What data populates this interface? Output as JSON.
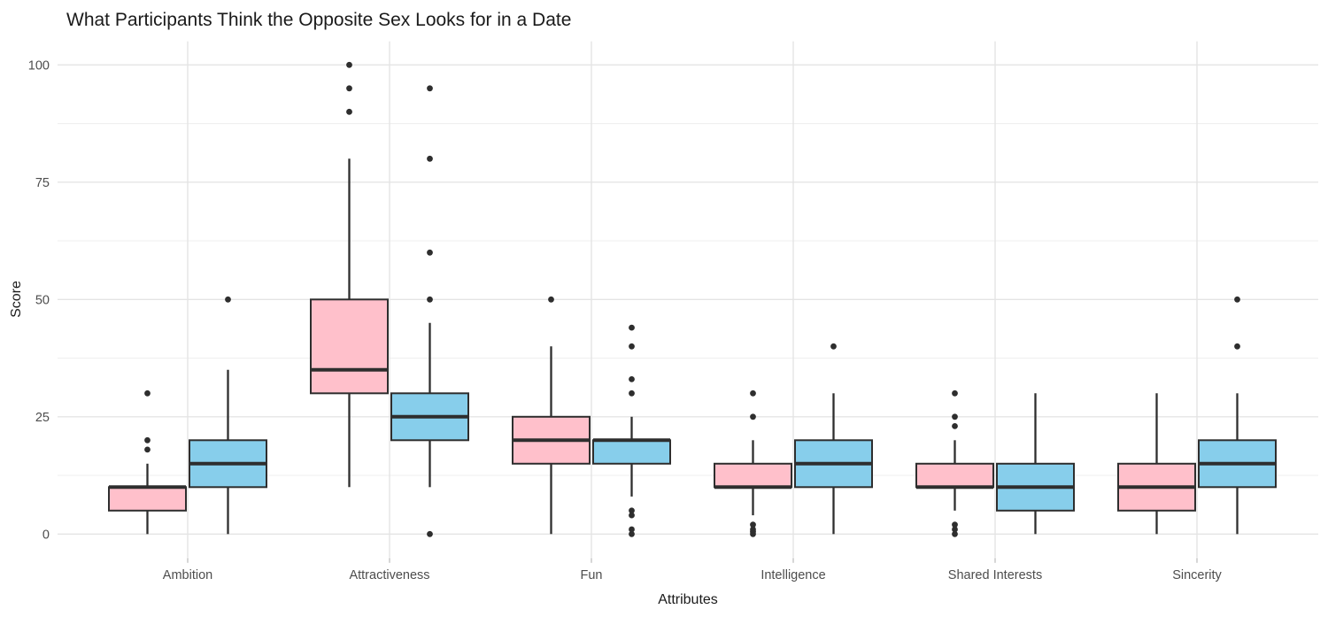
{
  "chart_data": {
    "type": "boxplot",
    "title": "What Participants Think the Opposite Sex Looks for in a Date",
    "xlabel": "Attributes",
    "ylabel": "Score",
    "categories": [
      "Ambition",
      "Attractiveness",
      "Fun",
      "Intelligence",
      "Shared Interests",
      "Sincerity"
    ],
    "ylim": [
      0,
      100
    ],
    "yticks": [
      0,
      25,
      50,
      75,
      100
    ],
    "ytick_labels": [
      "0",
      "25",
      "50",
      "75",
      "100"
    ],
    "yminor": [
      12.5,
      37.5,
      62.5,
      87.5
    ],
    "grid": "horizontal-major-minor, vertical-major",
    "legend": "none",
    "colors": {
      "pink_fill": "#FFC0CB",
      "blue_fill": "#87CEEB",
      "line": "#2E2E2E",
      "grid_major": "#E4E4E4",
      "grid_minor": "#F0F0F0",
      "tick": "#D6D6D6",
      "tick_text": "#4D4D4D"
    },
    "series": [
      {
        "name": "pink",
        "color": "#FFC0CB",
        "boxes": [
          {
            "category": "Ambition",
            "whisker_low": 0,
            "q1": 5,
            "median": 10,
            "q3": 10,
            "whisker_high": 15,
            "outliers": [
              18,
              20,
              30
            ]
          },
          {
            "category": "Attractiveness",
            "whisker_low": 10,
            "q1": 30,
            "median": 35,
            "q3": 50,
            "whisker_high": 80,
            "outliers": [
              90,
              95,
              100
            ]
          },
          {
            "category": "Fun",
            "whisker_low": 0,
            "q1": 15,
            "median": 20,
            "q3": 25,
            "whisker_high": 40,
            "outliers": [
              50
            ]
          },
          {
            "category": "Intelligence",
            "whisker_low": 4,
            "q1": 10,
            "median": 10,
            "q3": 15,
            "whisker_high": 20,
            "outliers": [
              0,
              0.5,
              1,
              2,
              25,
              30
            ]
          },
          {
            "category": "Shared Interests",
            "whisker_low": 5,
            "q1": 10,
            "median": 10,
            "q3": 15,
            "whisker_high": 20,
            "outliers": [
              0,
              1,
              2,
              23,
              25,
              30
            ]
          },
          {
            "category": "Sincerity",
            "whisker_low": 0,
            "q1": 5,
            "median": 10,
            "q3": 15,
            "whisker_high": 30,
            "outliers": []
          }
        ]
      },
      {
        "name": "blue",
        "color": "#87CEEB",
        "boxes": [
          {
            "category": "Ambition",
            "whisker_low": 0,
            "q1": 10,
            "median": 15,
            "q3": 20,
            "whisker_high": 35,
            "outliers": [
              50
            ]
          },
          {
            "category": "Attractiveness",
            "whisker_low": 10,
            "q1": 20,
            "median": 25,
            "q3": 30,
            "whisker_high": 45,
            "outliers": [
              0,
              50,
              60,
              80,
              95
            ]
          },
          {
            "category": "Fun",
            "whisker_low": 8,
            "q1": 15,
            "median": 20,
            "q3": 20,
            "whisker_high": 25,
            "outliers": [
              0,
              1,
              4,
              5,
              30,
              33,
              40,
              44
            ]
          },
          {
            "category": "Intelligence",
            "whisker_low": 0,
            "q1": 10,
            "median": 15,
            "q3": 20,
            "whisker_high": 30,
            "outliers": [
              40
            ]
          },
          {
            "category": "Shared Interests",
            "whisker_low": 0,
            "q1": 5,
            "median": 10,
            "q3": 15,
            "whisker_high": 30,
            "outliers": []
          },
          {
            "category": "Sincerity",
            "whisker_low": 0,
            "q1": 10,
            "median": 15,
            "q3": 20,
            "whisker_high": 30,
            "outliers": [
              40,
              50
            ]
          }
        ]
      }
    ]
  }
}
